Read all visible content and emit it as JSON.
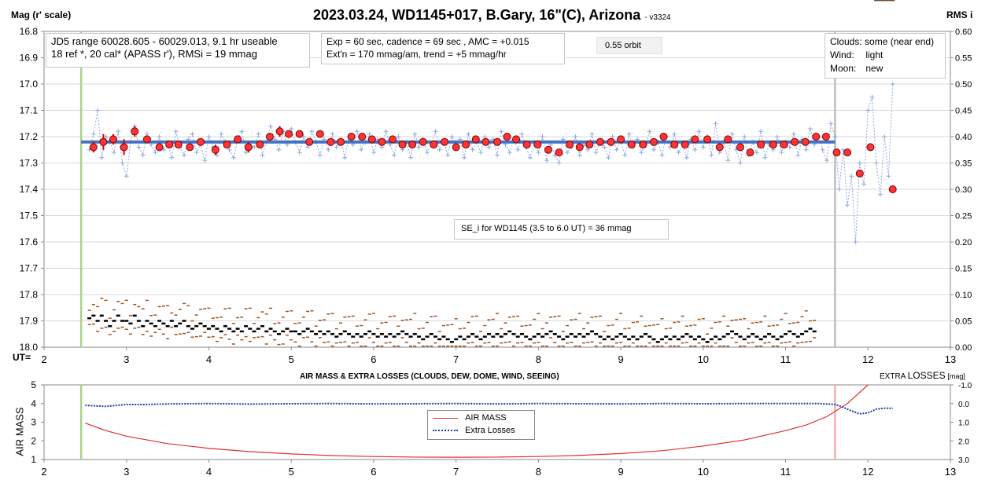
{
  "header": {
    "title": "2023.03.24, WD1145+017, B.Gary, 16\"(C), Arizona",
    "version": "- v3324",
    "left_axis_title": "Mag (r' scale)",
    "right_axis_title": "RMS i",
    "ut_label": "UT="
  },
  "notes": {
    "jd_range": "JD5 range 60028.605 - 60029.013, 9.1 hr useable",
    "refs": "18 ref *, 20 cal*  (APASS r'), RMSi = 19 mmag",
    "exposure": "Exp = 60 sec, cadence = 69 sec , AMC = +0.015",
    "extinction": "Ext'n = 170 mmag/am, trend = +5 mmag/hr",
    "orbit": "0.55 orbit",
    "conditions": [
      {
        "label": "Clouds:",
        "value": "some (near end)"
      },
      {
        "label": "Wind:",
        "value": "light"
      },
      {
        "label": "Moon:",
        "value": "new"
      }
    ],
    "se": "SE_i for WD1145 (3.5 to 6.0 UT) = 36 mmag"
  },
  "bottom": {
    "title": "AIR MASS & EXTRA LOSSES (CLOUDS, DEW, DOME, WIND, SEEING)",
    "right_title_prefix": "EXTRA ",
    "right_title_main": "LOSSES",
    "right_title_unit": "[mag]",
    "left_axis_title": "AIR MASS",
    "legend": {
      "airmass": "AIR MASS",
      "extra": "Extra Losses"
    }
  },
  "colors": {
    "model": "#4472c4",
    "raw": "#8ea9db",
    "binned_fill": "#ff3333",
    "binned_edge": "#7a0000",
    "error_bar": "#e00000",
    "rms": "#000000",
    "scatter_rms": "#a0521d",
    "airmass": "#e03030",
    "extra": "#1f3fa6",
    "start_line": "#a9d18e",
    "end_line": "#bfbfbf",
    "end_line_bottom": "#f4b0b0"
  },
  "chart_data": [
    {
      "type": "scatter",
      "name": "main",
      "xlabel": "UT=",
      "ylabel": "Mag (r' scale)",
      "y2label": "RMS i",
      "xlim": [
        2,
        13
      ],
      "ylim": [
        16.8,
        18.0
      ],
      "y_inverted": true,
      "y2lim": [
        0.0,
        0.6
      ],
      "x_ticks": [
        2,
        3,
        4,
        5,
        6,
        7,
        8,
        9,
        10,
        11,
        12,
        13
      ],
      "y_ticks": [
        "16.8",
        "16.9",
        "17.0",
        "17.1",
        "17.2",
        "17.3",
        "17.4",
        "17.5",
        "17.6",
        "17.7",
        "17.8",
        "17.9",
        "18.0"
      ],
      "y2_ticks": [
        "0.60",
        "0.55",
        "0.50",
        "0.45",
        "0.40",
        "0.35",
        "0.30",
        "0.25",
        "0.20",
        "0.15",
        "0.10",
        "0.05",
        "0.00"
      ],
      "model_line": {
        "x": [
          2.45,
          11.6
        ],
        "y": [
          17.22,
          17.22
        ]
      },
      "start_ut": 2.45,
      "end_ut": 11.6,
      "binned": {
        "x": [
          2.6,
          2.72,
          2.84,
          2.97,
          3.1,
          3.25,
          3.4,
          3.52,
          3.63,
          3.77,
          3.9,
          4.08,
          4.22,
          4.35,
          4.48,
          4.62,
          4.74,
          4.86,
          4.97,
          5.1,
          5.22,
          5.35,
          5.48,
          5.6,
          5.73,
          5.86,
          5.98,
          6.1,
          6.23,
          6.35,
          6.47,
          6.6,
          6.73,
          6.86,
          7.0,
          7.12,
          7.24,
          7.36,
          7.5,
          7.62,
          7.73,
          7.86,
          7.99,
          8.12,
          8.25,
          8.38,
          8.5,
          8.62,
          8.75,
          8.88,
          9.0,
          9.13,
          9.27,
          9.4,
          9.52,
          9.65,
          9.78,
          9.9,
          10.05,
          10.2,
          10.3,
          10.45,
          10.57,
          10.7,
          10.85,
          10.98,
          11.11,
          11.24,
          11.37,
          11.49,
          11.62,
          11.75,
          11.9,
          12.03,
          12.3
        ],
        "y": [
          17.24,
          17.22,
          17.21,
          17.24,
          17.18,
          17.21,
          17.24,
          17.23,
          17.23,
          17.24,
          17.22,
          17.25,
          17.23,
          17.21,
          17.24,
          17.23,
          17.2,
          17.18,
          17.19,
          17.19,
          17.22,
          17.19,
          17.22,
          17.22,
          17.2,
          17.2,
          17.21,
          17.22,
          17.21,
          17.23,
          17.23,
          17.22,
          17.23,
          17.22,
          17.24,
          17.23,
          17.21,
          17.22,
          17.22,
          17.2,
          17.21,
          17.23,
          17.23,
          17.25,
          17.26,
          17.23,
          17.24,
          17.23,
          17.22,
          17.22,
          17.21,
          17.23,
          17.23,
          17.22,
          17.2,
          17.23,
          17.23,
          17.21,
          17.21,
          17.24,
          17.21,
          17.24,
          17.26,
          17.23,
          17.23,
          17.23,
          17.22,
          17.22,
          17.2,
          17.2,
          17.26,
          17.26,
          17.34,
          17.24,
          17.4
        ],
        "err": [
          0.02,
          0.03,
          0.02,
          0.03,
          0.02,
          0.01,
          0.01,
          0.01,
          0.01,
          0.01,
          0.01,
          0.02,
          0.01,
          0.01,
          0.02,
          0.01,
          0.01,
          0.02,
          0.01,
          0.01,
          0.01,
          0.01,
          0.01,
          0.01,
          0.01,
          0.01,
          0.01,
          0.01,
          0.01,
          0.01,
          0.01,
          0.01,
          0.01,
          0.01,
          0.01,
          0.01,
          0.01,
          0.01,
          0.01,
          0.01,
          0.01,
          0.01,
          0.01,
          0.01,
          0.01,
          0.01,
          0.01,
          0.01,
          0.01,
          0.01,
          0.01,
          0.01,
          0.01,
          0.01,
          0.01,
          0.01,
          0.01,
          0.01,
          0.01,
          0.01,
          0.01,
          0.01,
          0.01,
          0.01,
          0.01,
          0.01,
          0.01,
          0.01,
          0.01,
          0.01,
          0.01,
          0.01,
          0.01,
          0.01,
          0.01
        ]
      },
      "raw": {
        "x": [
          2.55,
          2.6,
          2.65,
          2.7,
          2.75,
          2.8,
          2.85,
          2.9,
          2.95,
          3.0,
          3.05,
          3.1,
          3.15,
          3.2,
          3.25,
          3.3,
          3.35,
          3.4,
          3.45,
          3.5,
          3.55,
          3.6,
          3.65,
          3.7,
          3.75,
          3.8,
          3.85,
          3.9,
          3.95,
          4.0,
          4.05,
          4.1,
          4.15,
          4.2,
          4.25,
          4.3,
          4.35,
          4.4,
          4.45,
          4.5,
          4.55,
          4.6,
          4.65,
          4.7,
          4.75,
          4.8,
          4.85,
          4.9,
          4.95,
          5.0,
          5.05,
          5.1,
          5.15,
          5.2,
          5.25,
          5.3,
          5.35,
          5.4,
          5.45,
          5.5,
          5.55,
          5.6,
          5.65,
          5.7,
          5.75,
          5.8,
          5.85,
          5.9,
          5.95,
          6.0,
          6.05,
          6.1,
          6.15,
          6.2,
          6.25,
          6.3,
          6.35,
          6.4,
          6.45,
          6.5,
          6.55,
          6.6,
          6.65,
          6.7,
          6.75,
          6.8,
          6.85,
          6.9,
          6.95,
          7.0,
          7.05,
          7.1,
          7.15,
          7.2,
          7.25,
          7.3,
          7.35,
          7.4,
          7.45,
          7.5,
          7.55,
          7.6,
          7.65,
          7.7,
          7.75,
          7.8,
          7.85,
          7.9,
          7.95,
          8.0,
          8.05,
          8.1,
          8.15,
          8.2,
          8.25,
          8.3,
          8.35,
          8.4,
          8.45,
          8.5,
          8.55,
          8.6,
          8.65,
          8.7,
          8.75,
          8.8,
          8.85,
          8.9,
          8.95,
          9.0,
          9.05,
          9.1,
          9.15,
          9.2,
          9.25,
          9.3,
          9.35,
          9.4,
          9.45,
          9.5,
          9.55,
          9.6,
          9.65,
          9.7,
          9.75,
          9.8,
          9.85,
          9.9,
          9.95,
          10.0,
          10.05,
          10.1,
          10.15,
          10.2,
          10.25,
          10.3,
          10.35,
          10.4,
          10.45,
          10.5,
          10.55,
          10.6,
          10.65,
          10.7,
          10.75,
          10.8,
          10.85,
          10.9,
          10.95,
          11.0,
          11.05,
          11.1,
          11.15,
          11.2,
          11.25,
          11.3,
          11.35,
          11.4,
          11.45,
          11.5,
          11.55,
          11.6,
          11.65,
          11.7,
          11.75,
          11.8,
          11.85,
          11.9,
          11.95,
          12.0,
          12.05,
          12.1,
          12.15,
          12.2,
          12.25,
          12.3
        ],
        "y": [
          17.25,
          17.19,
          17.1,
          17.28,
          17.2,
          17.22,
          17.26,
          17.18,
          17.3,
          17.35,
          17.22,
          17.16,
          17.24,
          17.27,
          17.19,
          17.23,
          17.26,
          17.2,
          17.25,
          17.22,
          17.28,
          17.18,
          17.24,
          17.27,
          17.21,
          17.19,
          17.26,
          17.23,
          17.29,
          17.2,
          17.24,
          17.27,
          17.19,
          17.22,
          17.25,
          17.28,
          17.21,
          17.18,
          17.26,
          17.23,
          17.24,
          17.19,
          17.27,
          17.22,
          17.16,
          17.21,
          17.25,
          17.18,
          17.23,
          17.17,
          17.22,
          17.26,
          17.2,
          17.24,
          17.18,
          17.22,
          17.27,
          17.21,
          17.25,
          17.19,
          17.24,
          17.21,
          17.28,
          17.2,
          17.23,
          17.18,
          17.25,
          17.22,
          17.19,
          17.26,
          17.21,
          17.24,
          17.18,
          17.23,
          17.27,
          17.2,
          17.25,
          17.22,
          17.28,
          17.19,
          17.24,
          17.21,
          17.26,
          17.23,
          17.18,
          17.25,
          17.22,
          17.27,
          17.2,
          17.24,
          17.21,
          17.28,
          17.19,
          17.25,
          17.22,
          17.26,
          17.2,
          17.24,
          17.21,
          17.27,
          17.18,
          17.23,
          17.26,
          17.21,
          17.25,
          17.19,
          17.24,
          17.28,
          17.22,
          17.26,
          17.2,
          17.29,
          17.23,
          17.27,
          17.3,
          17.21,
          17.26,
          17.24,
          17.2,
          17.27,
          17.23,
          17.25,
          17.19,
          17.26,
          17.22,
          17.24,
          17.28,
          17.2,
          17.25,
          17.22,
          17.27,
          17.19,
          17.24,
          17.21,
          17.26,
          17.23,
          17.18,
          17.25,
          17.22,
          17.27,
          17.2,
          17.24,
          17.19,
          17.26,
          17.23,
          17.28,
          17.21,
          17.25,
          17.18,
          17.24,
          17.2,
          17.27,
          17.15,
          17.26,
          17.22,
          17.29,
          17.19,
          17.25,
          17.3,
          17.2,
          17.27,
          17.22,
          17.26,
          17.18,
          17.28,
          17.23,
          17.25,
          17.2,
          17.26,
          17.22,
          17.24,
          17.19,
          17.27,
          17.21,
          17.25,
          17.17,
          17.23,
          17.2,
          17.25,
          17.29,
          17.15,
          17.2,
          17.4,
          17.25,
          17.46,
          17.35,
          17.6,
          17.3,
          17.38,
          17.1,
          17.05,
          17.3,
          17.42,
          17.2,
          17.35,
          17.0
        ],
        "rms": [
          0.055,
          0.06,
          0.05,
          0.06,
          0.05,
          0.04,
          0.05,
          0.06,
          0.05,
          0.05,
          0.045,
          0.06,
          0.05,
          0.04,
          0.05,
          0.045,
          0.04,
          0.05,
          0.045,
          0.04,
          0.05,
          0.04,
          0.045,
          0.05,
          0.04,
          0.035,
          0.04,
          0.045,
          0.04,
          0.035,
          0.04,
          0.035,
          0.03,
          0.04,
          0.035,
          0.03,
          0.035,
          0.03,
          0.04,
          0.035,
          0.03,
          0.035,
          0.04,
          0.03,
          0.035,
          0.03,
          0.025,
          0.03,
          0.035,
          0.03,
          0.03,
          0.025,
          0.03,
          0.035,
          0.03,
          0.025,
          0.03,
          0.025,
          0.03,
          0.025,
          0.02,
          0.025,
          0.03,
          0.025,
          0.02,
          0.025,
          0.02,
          0.025,
          0.03,
          0.025,
          0.02,
          0.025,
          0.02,
          0.025,
          0.02,
          0.025,
          0.03,
          0.025,
          0.02,
          0.025,
          0.02,
          0.015,
          0.02,
          0.025,
          0.02,
          0.015,
          0.02,
          0.015,
          0.01,
          0.015,
          0.02,
          0.015,
          0.02,
          0.025,
          0.02,
          0.015,
          0.02,
          0.025,
          0.02,
          0.025,
          0.02,
          0.025,
          0.03,
          0.025,
          0.02,
          0.025,
          0.02,
          0.015,
          0.02,
          0.025,
          0.02,
          0.025,
          0.03,
          0.025,
          0.02,
          0.015,
          0.02,
          0.025,
          0.02,
          0.025,
          0.02,
          0.025,
          0.03,
          0.025,
          0.02,
          0.015,
          0.02,
          0.015,
          0.02,
          0.025,
          0.02,
          0.015,
          0.02,
          0.015,
          0.02,
          0.025,
          0.02,
          0.015,
          0.01,
          0.015,
          0.02,
          0.015,
          0.02,
          0.015,
          0.02,
          0.025,
          0.02,
          0.015,
          0.02,
          0.015,
          0.01,
          0.015,
          0.02,
          0.015,
          0.02,
          0.025,
          0.03,
          0.025,
          0.02,
          0.015,
          0.02,
          0.025,
          0.02,
          0.015,
          0.02,
          0.025,
          0.02,
          0.015,
          0.02,
          0.025,
          0.03,
          0.025,
          0.02,
          0.025,
          0.03,
          0.035,
          0.03,
          0.0,
          0.0,
          0.0,
          0.0,
          0.0,
          0.0,
          0.0,
          0.0,
          0.0,
          0.0,
          0.0,
          0.0,
          0.0,
          0.0
        ]
      }
    },
    {
      "type": "line",
      "name": "bottom",
      "title": "AIR MASS & EXTRA LOSSES (CLOUDS, DEW, DOME, WIND, SEEING)",
      "ylabel": "AIR MASS",
      "y2label": "EXTRA LOSSES [mag]",
      "xlim": [
        2,
        13
      ],
      "ylim": [
        1,
        5
      ],
      "y2lim": [
        -1.0,
        3.0
      ],
      "y2_inverted": true,
      "x_ticks": [
        2,
        3,
        4,
        5,
        6,
        7,
        8,
        9,
        10,
        11,
        12,
        13
      ],
      "y_ticks": [
        "1",
        "2",
        "3",
        "4",
        "5"
      ],
      "y2_ticks": [
        "-1.0",
        "0.0",
        "1.0",
        "2.0",
        "3.0"
      ],
      "series": [
        {
          "name": "AIR MASS",
          "x": [
            2.5,
            2.75,
            3.0,
            3.5,
            4.0,
            4.5,
            5.0,
            5.5,
            6.0,
            6.5,
            7.0,
            7.5,
            8.0,
            8.5,
            9.0,
            9.5,
            10.0,
            10.5,
            11.0,
            11.25,
            11.5,
            11.75,
            12.0
          ],
          "y": [
            2.95,
            2.55,
            2.25,
            1.85,
            1.6,
            1.42,
            1.3,
            1.21,
            1.16,
            1.13,
            1.12,
            1.13,
            1.16,
            1.22,
            1.32,
            1.47,
            1.72,
            2.05,
            2.55,
            2.85,
            3.3,
            4.0,
            5.0
          ]
        },
        {
          "name": "Extra Losses",
          "x": [
            2.5,
            2.75,
            3.0,
            3.25,
            3.5,
            4.0,
            4.5,
            5.0,
            5.5,
            6.0,
            6.5,
            7.0,
            7.5,
            8.0,
            8.5,
            9.0,
            9.5,
            10.0,
            10.5,
            11.0,
            11.4,
            11.6,
            11.7,
            11.8,
            11.9,
            12.0,
            12.1,
            12.2,
            12.3
          ],
          "y": [
            0.1,
            0.15,
            0.05,
            0.05,
            0.02,
            0.0,
            0.03,
            0.01,
            0.0,
            0.02,
            0.01,
            0.0,
            0.02,
            0.0,
            0.01,
            0.02,
            0.0,
            0.01,
            0.0,
            0.0,
            0.0,
            0.05,
            0.2,
            0.4,
            0.55,
            0.5,
            0.3,
            0.25,
            0.25
          ]
        }
      ]
    }
  ]
}
